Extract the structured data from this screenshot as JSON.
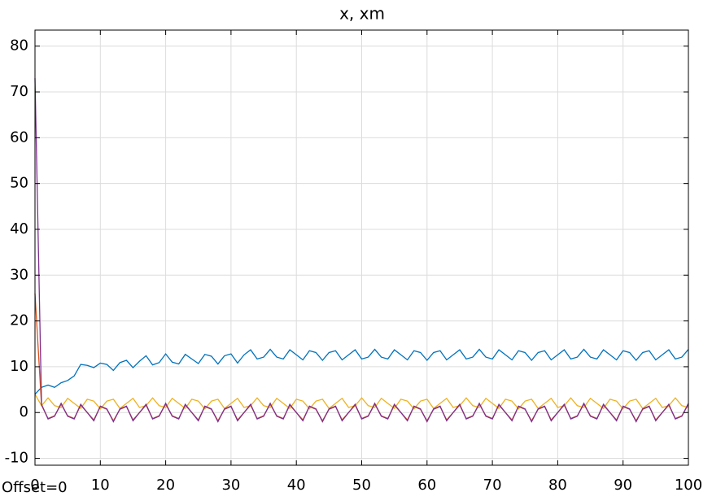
{
  "chart_data": {
    "type": "line",
    "title": "x, xm",
    "annotation": "Offset=0",
    "x": [
      0,
      1,
      2,
      3,
      4,
      5,
      6,
      7,
      8,
      9,
      10,
      11,
      12,
      13,
      14,
      15,
      16,
      17,
      18,
      19,
      20,
      21,
      22,
      23,
      24,
      25,
      26,
      27,
      28,
      29,
      30,
      31,
      32,
      33,
      34,
      35,
      36,
      37,
      38,
      39,
      40,
      41,
      42,
      43,
      44,
      45,
      46,
      47,
      48,
      49,
      50,
      51,
      52,
      53,
      54,
      55,
      56,
      57,
      58,
      59,
      60,
      61,
      62,
      63,
      64,
      65,
      66,
      67,
      68,
      69,
      70,
      71,
      72,
      73,
      74,
      75,
      76,
      77,
      78,
      79,
      80,
      81,
      82,
      83,
      84,
      85,
      86,
      87,
      88,
      89,
      90,
      91,
      92,
      93,
      94,
      95,
      96,
      97,
      98,
      99,
      100
    ],
    "series": [
      {
        "color": "#0072bd",
        "values": [
          4,
          5.5,
          6,
          5.5,
          6.5,
          7,
          8,
          10.5,
          10.3,
          9.8,
          10.8,
          10.5,
          9.2,
          10.9,
          11.4,
          9.8,
          11.2,
          12.4,
          10.4,
          10.9,
          12.8,
          11,
          10.6,
          12.7,
          11.7,
          10.7,
          12.7,
          12.3,
          10.6,
          12.4,
          12.8,
          10.8,
          12.6,
          13.7,
          11.7,
          12.1,
          13.8,
          12.1,
          11.7,
          13.7,
          12.6,
          11.5,
          13.5,
          13.1,
          11.4,
          13.1,
          13.5,
          11.5,
          12.6,
          13.7,
          11.7,
          12.1,
          13.8,
          12.1,
          11.7,
          13.7,
          12.6,
          11.5,
          13.5,
          13.1,
          11.4,
          13.1,
          13.5,
          11.5,
          12.6,
          13.7,
          11.7,
          12.1,
          13.8,
          12.1,
          11.7,
          13.7,
          12.6,
          11.5,
          13.5,
          13.1,
          11.4,
          13.1,
          13.5,
          11.5,
          12.6,
          13.7,
          11.7,
          12.1,
          13.8,
          12.1,
          11.7,
          13.7,
          12.6,
          11.5,
          13.5,
          13.1,
          11.4,
          13.1,
          13.5,
          11.5,
          12.6,
          13.7,
          11.7,
          12.1,
          13.8
        ]
      },
      {
        "color": "#edb120",
        "values": [
          4,
          1.5,
          3.2,
          1.5,
          1.1,
          3.1,
          2,
          0.9,
          2.9,
          2.5,
          0.8,
          2.5,
          2.9,
          0.9,
          2,
          3.1,
          1.1,
          1.5,
          3.2,
          1.5,
          1.1,
          3.1,
          2,
          0.9,
          2.9,
          2.5,
          0.8,
          2.5,
          2.9,
          0.9,
          2,
          3.1,
          1.1,
          1.5,
          3.2,
          1.5,
          1.1,
          3.1,
          2,
          0.9,
          2.9,
          2.5,
          0.8,
          2.5,
          2.9,
          0.9,
          2,
          3.1,
          1.1,
          1.5,
          3.2,
          1.5,
          1.1,
          3.1,
          2,
          0.9,
          2.9,
          2.5,
          0.8,
          2.5,
          2.9,
          0.9,
          2,
          3.1,
          1.1,
          1.5,
          3.2,
          1.5,
          1.1,
          3.1,
          2,
          0.9,
          2.9,
          2.5,
          0.8,
          2.5,
          2.9,
          0.9,
          2,
          3.1,
          1.1,
          1.5,
          3.2,
          1.5,
          1.1,
          3.1,
          2,
          0.9,
          2.9,
          2.5,
          0.8,
          2.5,
          2.9,
          0.9,
          2,
          3.1,
          1.1,
          1.5,
          3.2,
          1.5,
          1.1
        ]
      },
      {
        "color": "#d95319",
        "values": [
          26,
          1.6,
          -1.3,
          -0.7,
          1.8,
          -0.7,
          -1.3,
          1.6,
          0,
          -1.6,
          1.3,
          0.7,
          -1.8,
          0.7,
          1.3,
          -1.6,
          0,
          1.6,
          -1.3,
          -0.7,
          1.8,
          -0.7,
          -1.3,
          1.6,
          0,
          -1.6,
          1.3,
          0.7,
          -1.8,
          0.7,
          1.3,
          -1.6,
          0,
          1.6,
          -1.3,
          -0.7,
          1.8,
          -0.7,
          -1.3,
          1.6,
          0,
          -1.6,
          1.3,
          0.7,
          -1.8,
          0.7,
          1.3,
          -1.6,
          0,
          1.6,
          -1.3,
          -0.7,
          1.8,
          -0.7,
          -1.3,
          1.6,
          0,
          -1.6,
          1.3,
          0.7,
          -1.8,
          0.7,
          1.3,
          -1.6,
          0,
          1.6,
          -1.3,
          -0.7,
          1.8,
          -0.7,
          -1.3,
          1.6,
          0,
          -1.6,
          1.3,
          0.7,
          -1.8,
          0.7,
          1.3,
          -1.6,
          0,
          1.6,
          -1.3,
          -0.7,
          1.8,
          -0.7,
          -1.3,
          1.6,
          0,
          -1.6,
          1.3,
          0.7,
          -1.8,
          0.7,
          1.3,
          -1.6,
          0,
          1.6,
          -1.3,
          -0.7,
          1.8
        ]
      },
      {
        "color": "#7e2f8e",
        "values": [
          73,
          1.8,
          -1.4,
          -0.8,
          2,
          -0.8,
          -1.4,
          1.8,
          0,
          -1.8,
          1.4,
          0.8,
          -2,
          0.8,
          1.4,
          -1.8,
          0,
          1.8,
          -1.4,
          -0.8,
          2,
          -0.8,
          -1.4,
          1.8,
          0,
          -1.8,
          1.4,
          0.8,
          -2,
          0.8,
          1.4,
          -1.8,
          0,
          1.8,
          -1.4,
          -0.8,
          2,
          -0.8,
          -1.4,
          1.8,
          0,
          -1.8,
          1.4,
          0.8,
          -2,
          0.8,
          1.4,
          -1.8,
          0,
          1.8,
          -1.4,
          -0.8,
          2,
          -0.8,
          -1.4,
          1.8,
          0,
          -1.8,
          1.4,
          0.8,
          -2,
          0.8,
          1.4,
          -1.8,
          0,
          1.8,
          -1.4,
          -0.8,
          2,
          -0.8,
          -1.4,
          1.8,
          0,
          -1.8,
          1.4,
          0.8,
          -2,
          0.8,
          1.4,
          -1.8,
          0,
          1.8,
          -1.4,
          -0.8,
          2,
          -0.8,
          -1.4,
          1.8,
          0,
          -1.8,
          1.4,
          0.8,
          -2,
          0.8,
          1.4,
          -1.8,
          0,
          1.8,
          -1.4,
          -0.8,
          2
        ]
      }
    ],
    "xlim": [
      0,
      100
    ],
    "xticks": [
      0,
      10,
      20,
      30,
      40,
      50,
      60,
      70,
      80,
      90,
      100
    ],
    "ylim": [
      -11.5,
      83.5
    ],
    "yticks": [
      -10,
      0,
      10,
      20,
      30,
      40,
      50,
      60,
      70,
      80
    ],
    "grid": true
  }
}
